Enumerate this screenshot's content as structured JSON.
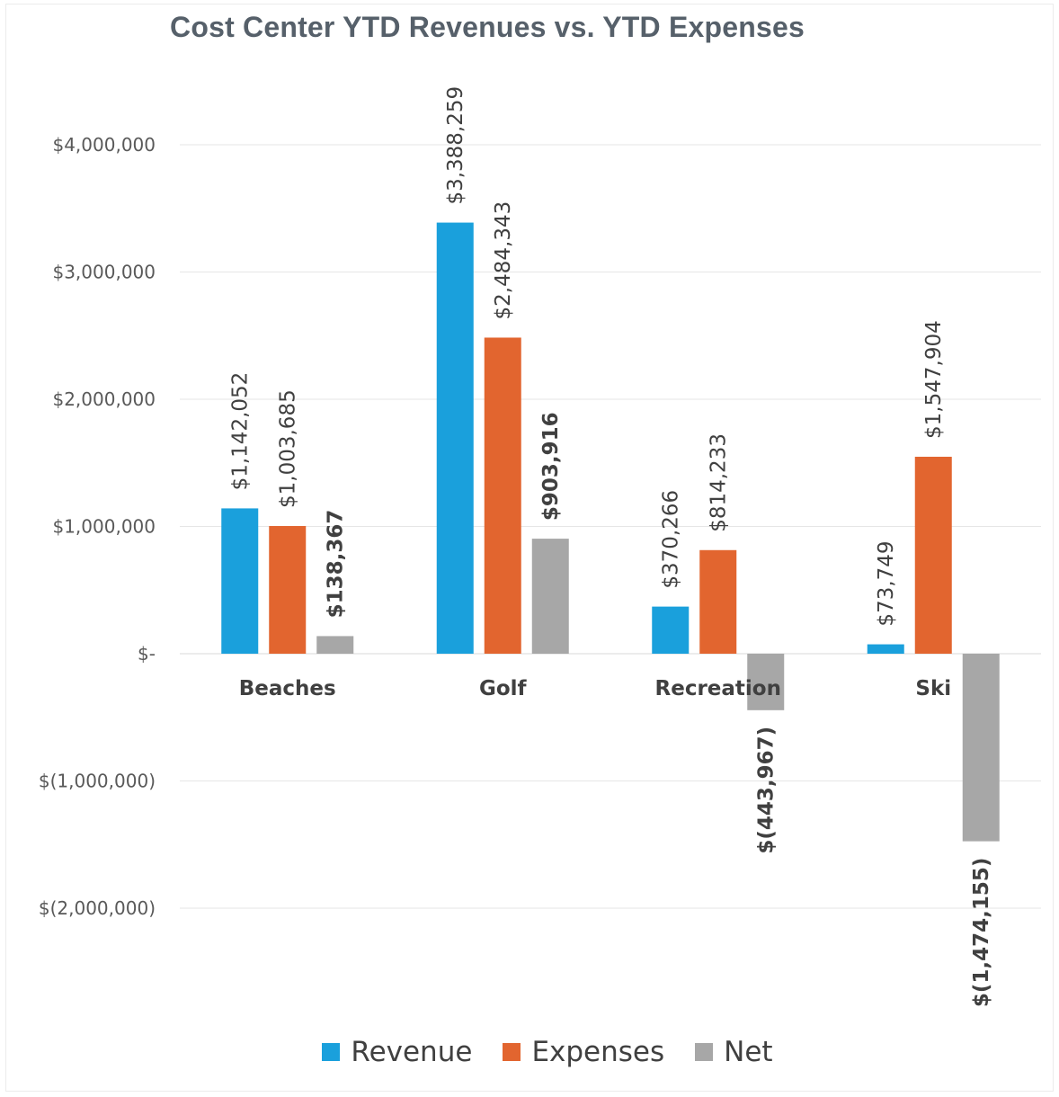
{
  "chart_data": {
    "type": "bar",
    "title": "Cost Center YTD Revenues vs. YTD Expenses",
    "categories": [
      "Beaches",
      "Golf",
      "Recreation",
      "Ski"
    ],
    "series": [
      {
        "name": "Revenue",
        "color": "#1aa0dc",
        "values": [
          1142052,
          3388259,
          370266,
          73749
        ],
        "labels": [
          "$1,142,052",
          "$3,388,259",
          "$370,266",
          "$73,749"
        ],
        "label_bold": false
      },
      {
        "name": "Expenses",
        "color": "#e2652f",
        "values": [
          1003685,
          2484343,
          814233,
          1547904
        ],
        "labels": [
          "$1,003,685",
          "$2,484,343",
          "$814,233",
          "$1,547,904"
        ],
        "label_bold": false
      },
      {
        "name": "Net",
        "color": "#a7a7a7",
        "values": [
          138367,
          903916,
          -443967,
          -1474155
        ],
        "labels": [
          "$138,367",
          "$903,916",
          "$(443,967)",
          "$(1,474,155)"
        ],
        "label_bold": true
      }
    ],
    "ylim": [
      -2500000,
      4500000
    ],
    "yticks": [
      4000000,
      3000000,
      2000000,
      1000000,
      0,
      -1000000,
      -2000000
    ],
    "ytick_labels": [
      "$4,000,000",
      "$3,000,000",
      "$2,000,000",
      "$1,000,000",
      "$-",
      "$(1,000,000)",
      "$(2,000,000)"
    ],
    "grid": true,
    "legend_position": "bottom",
    "xlabel": "",
    "ylabel": ""
  }
}
